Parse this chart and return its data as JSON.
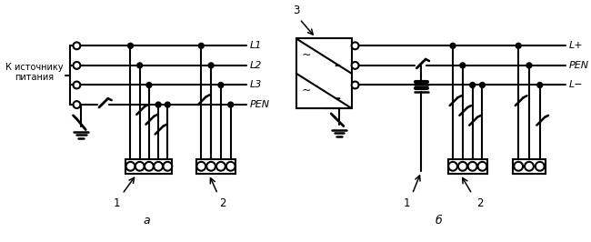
{
  "bg_color": "#ffffff",
  "lc": "#000000",
  "lw": 1.5,
  "dr": 3.0,
  "label_a": "a",
  "label_b": "б",
  "label_source_line1": "К источнику",
  "label_source_line2": "питания",
  "label_L1": "L1",
  "label_L2": "L2",
  "label_L3": "L3",
  "label_PEN": "PEN",
  "label_Lplus": "L+",
  "label_PEN_b": "PEN",
  "label_Lminus": "L−",
  "label_1": "1",
  "label_2": "2",
  "label_3": "3"
}
